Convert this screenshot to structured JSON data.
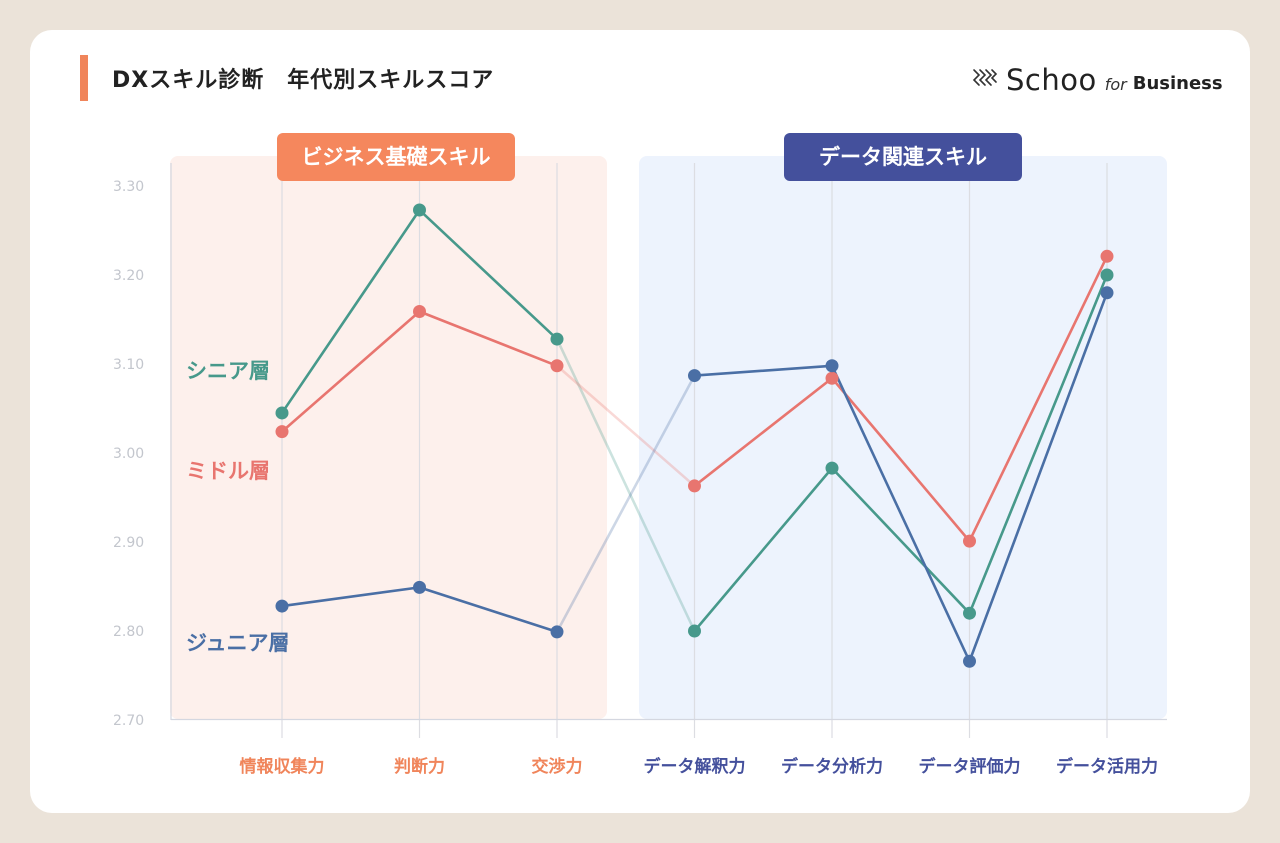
{
  "header": {
    "title": "DXスキル診断　年代別スキルスコア",
    "logo": {
      "name": "Schoo",
      "for": "for",
      "business": "Business"
    }
  },
  "colors": {
    "business_group_bg": "#fdf0ec",
    "data_group_bg": "#edf3fd",
    "business_label_bg": "#f5875d",
    "data_label_bg": "#44509c",
    "business_tick": "#f0855b",
    "data_tick": "#44509c",
    "senior": "#47998b",
    "middle": "#e8756f",
    "junior": "#4a6fa5"
  },
  "chart_data": {
    "type": "line",
    "title": "DXスキル診断　年代別スキルスコア",
    "xlabel": "",
    "ylabel": "",
    "ylim": [
      2.7,
      3.3
    ],
    "yticks": [
      "3.30",
      "3.20",
      "3.10",
      "3.00",
      "2.90",
      "2.80",
      "2.70"
    ],
    "grid": "vertical",
    "categories": [
      "情報収集力",
      "判断力",
      "交渉力",
      "データ解釈力",
      "データ分析力",
      "データ評価力",
      "データ活用力"
    ],
    "groups": [
      {
        "label": "ビジネス基礎スキル",
        "categories": [
          "情報収集力",
          "判断力",
          "交渉力"
        ]
      },
      {
        "label": "データ関連スキル",
        "categories": [
          "データ解釈力",
          "データ分析力",
          "データ評価力",
          "データ活用力"
        ]
      }
    ],
    "series": [
      {
        "name": "シニア層",
        "values": [
          3.045,
          3.273,
          3.128,
          2.8,
          2.983,
          2.82,
          3.2
        ]
      },
      {
        "name": "ミドル層",
        "values": [
          3.024,
          3.159,
          3.098,
          2.963,
          3.084,
          2.901,
          3.221
        ]
      },
      {
        "name": "ジュニア層",
        "values": [
          2.828,
          2.849,
          2.799,
          3.087,
          3.098,
          2.766,
          3.18
        ]
      }
    ]
  }
}
